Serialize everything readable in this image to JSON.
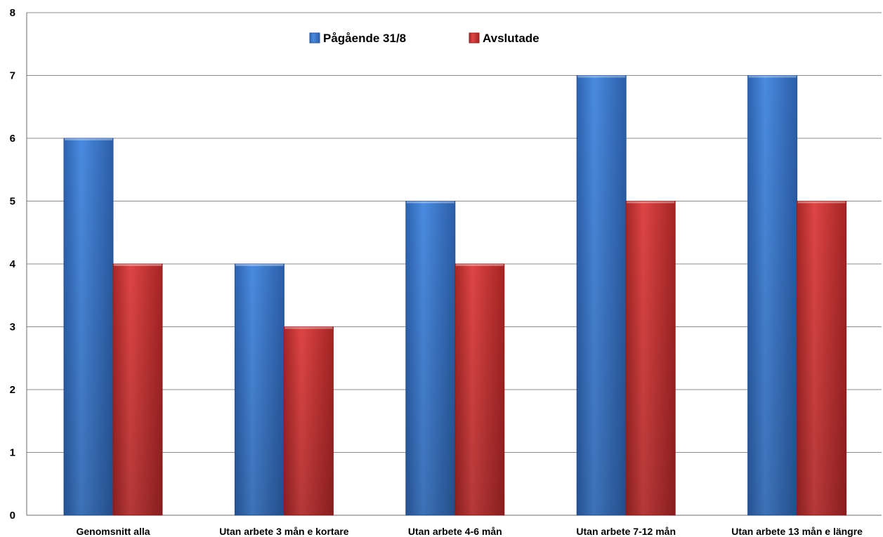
{
  "chart_data": {
    "type": "bar",
    "title": "",
    "xlabel": "",
    "ylabel": "",
    "categories": [
      "Genomsnitt alla",
      "Utan arbete 3 mån e kortare",
      "Utan arbete 4-6 mån",
      "Utan arbete 7-12 mån",
      "Utan arbete 13 mån e längre"
    ],
    "series": [
      {
        "name": "Pågående 31/8",
        "color": "#3f7fd0",
        "values": [
          6,
          4,
          5,
          7,
          7
        ]
      },
      {
        "name": "Avslutade",
        "color": "#d23a3a",
        "values": [
          4,
          3,
          4,
          5,
          5
        ]
      }
    ],
    "ylim": [
      0,
      8
    ],
    "yticks": [
      0,
      1,
      2,
      3,
      4,
      5,
      6,
      7,
      8
    ],
    "grid": true,
    "legend_position": "top-center"
  }
}
